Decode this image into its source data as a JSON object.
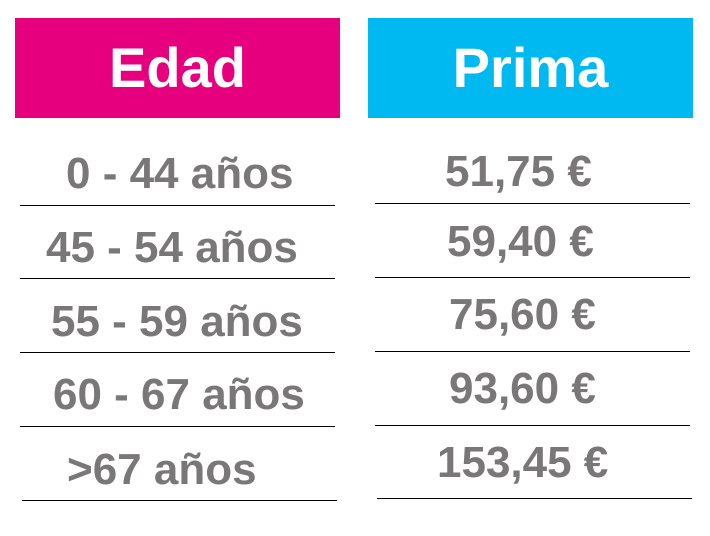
{
  "headers": {
    "edad": "Edad",
    "prima": "Prima"
  },
  "colors": {
    "edad_header": "#e6007e",
    "prima_header": "#00b9f0",
    "cell_text": "#7a7778",
    "header_text": "#ffffff"
  },
  "rows": [
    {
      "edad": "0 - 44 años",
      "prima": "51,75 €"
    },
    {
      "edad": "45 - 54 años",
      "prima": "59,40 €"
    },
    {
      "edad": "55 - 59 años",
      "prima": "75,60 €"
    },
    {
      "edad": "60 - 67 años",
      "prima": "93,60 €"
    },
    {
      "edad": ">67 años",
      "prima": "153,45 €"
    }
  ]
}
